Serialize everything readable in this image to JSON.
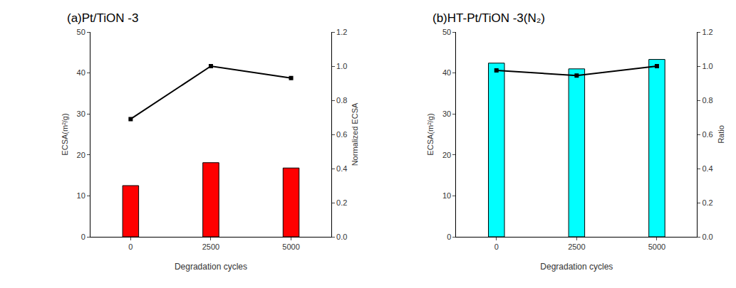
{
  "chart_data": [
    {
      "type": "bar",
      "title": "(a)Pt/TiON -3",
      "x_label": "Degradation cycles",
      "y_label": "ECSA(m²/g)",
      "y2_label": "Normalized ECSA",
      "categories": [
        "0",
        "2500",
        "5000"
      ],
      "series": [
        {
          "type": "bar",
          "color": "#ff0000",
          "values": [
            12.5,
            18.1,
            16.8
          ]
        },
        {
          "type": "line",
          "axis": "y2",
          "color": "#000000",
          "marker": "square",
          "line_style": "solid",
          "values": [
            0.69,
            1.0,
            0.93
          ]
        }
      ],
      "ylim": [
        0,
        50
      ],
      "yticks": [
        0,
        10,
        20,
        30,
        40,
        50
      ],
      "y2lim": [
        0,
        1.2
      ],
      "y2ticks": [
        {
          "value": 0,
          "label": "0.0"
        },
        0.2,
        0.4,
        0.6,
        0.8,
        {
          "value": 1,
          "label": "1.0"
        },
        1.2
      ],
      "grid": false
    },
    {
      "type": "bar",
      "title": "(b)HT-Pt/TiON -3(N₂)",
      "x_label": "Degradation cycles",
      "y_label": "ECSA(m²/g)",
      "y2_label": "Ratio",
      "categories": [
        "0",
        "2500",
        "5000"
      ],
      "series": [
        {
          "type": "bar",
          "color": "#00ffff",
          "values": [
            42.4,
            41.0,
            43.3
          ]
        },
        {
          "type": "line",
          "axis": "y2",
          "color": "#000000",
          "marker": "square",
          "line_style": "solid",
          "values": [
            0.975,
            0.945,
            1.0
          ]
        }
      ],
      "ylim": [
        0,
        50
      ],
      "yticks": [
        0,
        10,
        20,
        30,
        40,
        50
      ],
      "y2lim": [
        0,
        1.2
      ],
      "y2ticks": [
        {
          "value": 0,
          "label": "0.0"
        },
        0.2,
        0.4,
        0.6,
        0.8,
        {
          "value": 1,
          "label": "1.0"
        },
        1.2
      ],
      "grid": false
    }
  ]
}
